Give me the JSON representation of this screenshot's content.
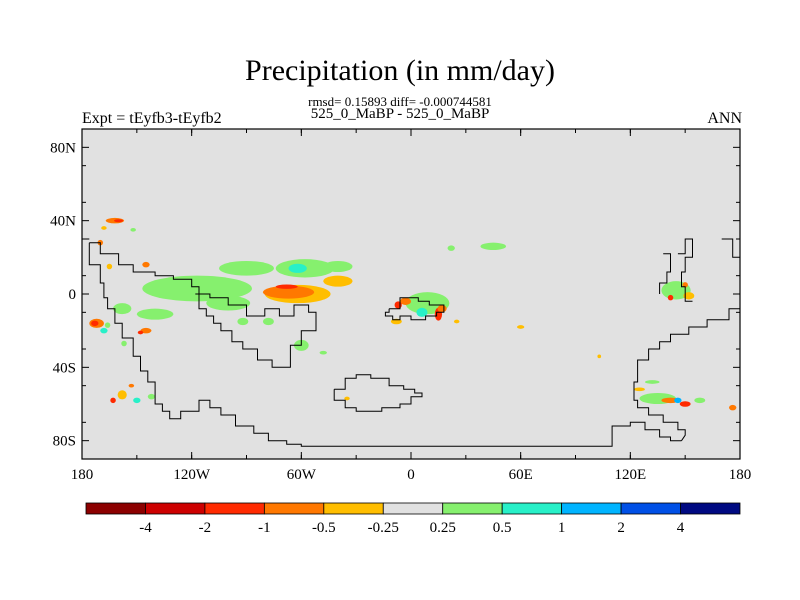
{
  "title": "Precipitation (in mm/day)",
  "stats": "rmsd= 0.15893 diff= -0.000744581",
  "case_label": "525_0_MaBP - 525_0_MaBP",
  "expt_label": "Expt = tEyfb3-tEyfb2",
  "season": "ANN",
  "chart_data": {
    "type": "heatmap",
    "title": "Precipitation (in mm/day)",
    "subtitle": "rmsd= 0.15893 diff= -0.000744581",
    "x_range": [
      -180,
      180
    ],
    "y_range": [
      -90,
      90
    ],
    "x_ticks": [
      {
        "value": -180,
        "label": "180"
      },
      {
        "value": -120,
        "label": "120W"
      },
      {
        "value": -60,
        "label": "60W"
      },
      {
        "value": 0,
        "label": "0"
      },
      {
        "value": 60,
        "label": "60E"
      },
      {
        "value": 120,
        "label": "120E"
      },
      {
        "value": 180,
        "label": "180"
      }
    ],
    "y_ticks": [
      {
        "value": 80,
        "label": "80N"
      },
      {
        "value": 40,
        "label": "40N"
      },
      {
        "value": 0,
        "label": "0"
      },
      {
        "value": -40,
        "label": "40S"
      },
      {
        "value": -80,
        "label": "80S"
      }
    ],
    "background_color": "#e1e1e1",
    "colorbar": {
      "colors": [
        "#8c0000",
        "#cd0000",
        "#ff2a00",
        "#ff7800",
        "#ffbe00",
        "#e1e1e1",
        "#86f06e",
        "#28f0c8",
        "#00b4ff",
        "#0050e6",
        "#000a82"
      ],
      "labels": [
        "-4",
        "-2",
        "-1",
        "-0.5",
        "-0.25",
        "0.25",
        "0.5",
        "1",
        "2",
        "4"
      ]
    },
    "anomalies": [
      {
        "lon": -162,
        "lat": 40,
        "rx": 5,
        "ry": 1.5,
        "color": "#ff7800"
      },
      {
        "lon": -160,
        "lat": 40,
        "rx": 2.5,
        "ry": 0.8,
        "color": "#ff2a00"
      },
      {
        "lon": -168,
        "lat": 36,
        "rx": 1.5,
        "ry": 1,
        "color": "#ffbe00"
      },
      {
        "lon": -152,
        "lat": 35,
        "rx": 1.5,
        "ry": 1,
        "color": "#86f06e"
      },
      {
        "lon": -170,
        "lat": 28,
        "rx": 1.5,
        "ry": 1.5,
        "color": "#ff7800"
      },
      {
        "lon": -145,
        "lat": 16,
        "rx": 2,
        "ry": 1.5,
        "color": "#ff7800"
      },
      {
        "lon": -165,
        "lat": 15,
        "rx": 1.5,
        "ry": 1.5,
        "color": "#ffbe00"
      },
      {
        "lon": -117,
        "lat": 3,
        "rx": 30,
        "ry": 7,
        "color": "#86f06e"
      },
      {
        "lon": -90,
        "lat": 14,
        "rx": 15,
        "ry": 4,
        "color": "#86f06e"
      },
      {
        "lon": -100,
        "lat": -5,
        "rx": 12,
        "ry": 4,
        "color": "#86f06e"
      },
      {
        "lon": -140,
        "lat": -11,
        "rx": 10,
        "ry": 3,
        "color": "#86f06e"
      },
      {
        "lon": -158,
        "lat": -8,
        "rx": 5,
        "ry": 3,
        "color": "#86f06e"
      },
      {
        "lon": -62,
        "lat": 0,
        "rx": 18,
        "ry": 5,
        "color": "#ffbe00"
      },
      {
        "lon": -67,
        "lat": 1,
        "rx": 14,
        "ry": 3.5,
        "color": "#ff7800"
      },
      {
        "lon": -68,
        "lat": 4,
        "rx": 6,
        "ry": 1.2,
        "color": "#ff2a00"
      },
      {
        "lon": -40,
        "lat": 7,
        "rx": 8,
        "ry": 3,
        "color": "#ffbe00"
      },
      {
        "lon": -58,
        "lat": 14,
        "rx": 16,
        "ry": 5,
        "color": "#86f06e"
      },
      {
        "lon": -40,
        "lat": 15,
        "rx": 8,
        "ry": 3,
        "color": "#86f06e"
      },
      {
        "lon": -62,
        "lat": 14,
        "rx": 5,
        "ry": 2.5,
        "color": "#28f0c8"
      },
      {
        "lon": -60,
        "lat": -28,
        "rx": 4,
        "ry": 3,
        "color": "#86f06e"
      },
      {
        "lon": -78,
        "lat": -15,
        "rx": 3,
        "ry": 2,
        "color": "#86f06e"
      },
      {
        "lon": -92,
        "lat": -15,
        "rx": 3,
        "ry": 2,
        "color": "#86f06e"
      },
      {
        "lon": -48,
        "lat": -32,
        "rx": 2,
        "ry": 1,
        "color": "#86f06e"
      },
      {
        "lon": 9,
        "lat": -5,
        "rx": 12,
        "ry": 6,
        "color": "#86f06e"
      },
      {
        "lon": -3,
        "lat": -4,
        "rx": 3,
        "ry": 2,
        "color": "#ff7800"
      },
      {
        "lon": -7,
        "lat": -6,
        "rx": 2,
        "ry": 2,
        "color": "#ff2a00"
      },
      {
        "lon": 6,
        "lat": -10,
        "rx": 3,
        "ry": 2.5,
        "color": "#28f0c8"
      },
      {
        "lon": 15,
        "lat": -11,
        "rx": 2,
        "ry": 3.5,
        "color": "#ff2a00"
      },
      {
        "lon": 17,
        "lat": -8,
        "rx": 2.5,
        "ry": 2,
        "color": "#ff7800"
      },
      {
        "lon": -8,
        "lat": -15,
        "rx": 3,
        "ry": 1.5,
        "color": "#ffbe00"
      },
      {
        "lon": 25,
        "lat": -15,
        "rx": 1.5,
        "ry": 1,
        "color": "#ffbe00"
      },
      {
        "lon": 22,
        "lat": 25,
        "rx": 2,
        "ry": 1.5,
        "color": "#86f06e"
      },
      {
        "lon": 45,
        "lat": 26,
        "rx": 7,
        "ry": 2,
        "color": "#86f06e"
      },
      {
        "lon": 60,
        "lat": -18,
        "rx": 2,
        "ry": 1,
        "color": "#ffbe00"
      },
      {
        "lon": 103,
        "lat": -34,
        "rx": 1,
        "ry": 1,
        "color": "#ffbe00"
      },
      {
        "lon": 145,
        "lat": 2,
        "rx": 8,
        "ry": 5,
        "color": "#86f06e"
      },
      {
        "lon": 152,
        "lat": -1,
        "rx": 3,
        "ry": 2,
        "color": "#ffbe00"
      },
      {
        "lon": 142,
        "lat": -2,
        "rx": 1.5,
        "ry": 1.5,
        "color": "#ff2a00"
      },
      {
        "lon": 150,
        "lat": 5,
        "rx": 1.5,
        "ry": 1.5,
        "color": "#ff7800"
      },
      {
        "lon": -172,
        "lat": -16,
        "rx": 4,
        "ry": 2.5,
        "color": "#ff7800"
      },
      {
        "lon": -173,
        "lat": -16,
        "rx": 2,
        "ry": 1.5,
        "color": "#ff2a00"
      },
      {
        "lon": -168,
        "lat": -20,
        "rx": 2,
        "ry": 1.5,
        "color": "#28f0c8"
      },
      {
        "lon": -166,
        "lat": -17,
        "rx": 1.5,
        "ry": 1.5,
        "color": "#86f06e"
      },
      {
        "lon": -145,
        "lat": -20,
        "rx": 3,
        "ry": 1.5,
        "color": "#ff7800"
      },
      {
        "lon": -148,
        "lat": -21,
        "rx": 1.5,
        "ry": 1,
        "color": "#ff2a00"
      },
      {
        "lon": -157,
        "lat": -27,
        "rx": 1.5,
        "ry": 1.5,
        "color": "#86f06e"
      },
      {
        "lon": -158,
        "lat": -55,
        "rx": 2.5,
        "ry": 2.5,
        "color": "#ffbe00"
      },
      {
        "lon": -163,
        "lat": -58,
        "rx": 1.5,
        "ry": 1.5,
        "color": "#ff2a00"
      },
      {
        "lon": -150,
        "lat": -58,
        "rx": 2,
        "ry": 1.5,
        "color": "#28f0c8"
      },
      {
        "lon": -142,
        "lat": -56,
        "rx": 2,
        "ry": 1.5,
        "color": "#86f06e"
      },
      {
        "lon": -153,
        "lat": -50,
        "rx": 1.5,
        "ry": 1,
        "color": "#ff7800"
      },
      {
        "lon": 135,
        "lat": -57,
        "rx": 10,
        "ry": 3,
        "color": "#86f06e"
      },
      {
        "lon": 142,
        "lat": -58,
        "rx": 5,
        "ry": 1.5,
        "color": "#ff7800"
      },
      {
        "lon": 150,
        "lat": -60,
        "rx": 3,
        "ry": 1.5,
        "color": "#ff2a00"
      },
      {
        "lon": 146,
        "lat": -58,
        "rx": 2,
        "ry": 1.5,
        "color": "#00b4ff"
      },
      {
        "lon": 158,
        "lat": -58,
        "rx": 3,
        "ry": 1.5,
        "color": "#86f06e"
      },
      {
        "lon": 125,
        "lat": -52,
        "rx": 3,
        "ry": 1,
        "color": "#ffbe00"
      },
      {
        "lon": 132,
        "lat": -48,
        "rx": 4,
        "ry": 1,
        "color": "#86f06e"
      },
      {
        "lon": 176,
        "lat": -62,
        "rx": 2,
        "ry": 1.5,
        "color": "#ff7800"
      },
      {
        "lon": -35,
        "lat": -57,
        "rx": 1.5,
        "ry": 1,
        "color": "#ffbe00"
      }
    ],
    "coastlines": [
      [
        [
          -176,
          28
        ],
        [
          -170,
          28
        ],
        [
          -170,
          22
        ],
        [
          -160,
          22
        ],
        [
          -160,
          16
        ],
        [
          -152,
          16
        ],
        [
          -152,
          12
        ],
        [
          -140,
          12
        ],
        [
          -140,
          10
        ],
        [
          -130,
          10
        ],
        [
          -130,
          8
        ],
        [
          -120,
          8
        ],
        [
          -120,
          4
        ],
        [
          -116,
          4
        ],
        [
          -116,
          -8
        ],
        [
          -112,
          -8
        ],
        [
          -112,
          -12
        ],
        [
          -108,
          -12
        ],
        [
          -108,
          -16
        ],
        [
          -104,
          -16
        ],
        [
          -104,
          -20
        ],
        [
          -98,
          -20
        ],
        [
          -98,
          -26
        ],
        [
          -92,
          -26
        ],
        [
          -92,
          -30
        ],
        [
          -84,
          -30
        ],
        [
          -84,
          -36
        ],
        [
          -76,
          -36
        ],
        [
          -76,
          -40
        ],
        [
          -66,
          -40
        ],
        [
          -66,
          -28
        ],
        [
          -60,
          -28
        ],
        [
          -60,
          -20
        ],
        [
          -52,
          -20
        ],
        [
          -52,
          -10
        ],
        [
          -56,
          -10
        ],
        [
          -56,
          -6
        ],
        [
          -64,
          -6
        ],
        [
          -64,
          -12
        ],
        [
          -72,
          -12
        ],
        [
          -72,
          -8
        ],
        [
          -80,
          -8
        ],
        [
          -80,
          -12
        ],
        [
          -90,
          -12
        ],
        [
          -90,
          -6
        ],
        [
          -100,
          -6
        ],
        [
          -100,
          -2
        ],
        [
          -110,
          -2
        ],
        [
          -110,
          0
        ],
        [
          -118,
          0
        ]
      ],
      [
        [
          -176,
          28
        ],
        [
          -176,
          16
        ],
        [
          -170,
          16
        ],
        [
          -170,
          6
        ],
        [
          -168,
          6
        ],
        [
          -168,
          -2
        ],
        [
          -166,
          -2
        ],
        [
          -166,
          -8
        ],
        [
          -162,
          -8
        ],
        [
          -162,
          -16
        ],
        [
          -158,
          -16
        ],
        [
          -158,
          -24
        ],
        [
          -152,
          -24
        ],
        [
          -152,
          -34
        ],
        [
          -148,
          -34
        ],
        [
          -148,
          -42
        ],
        [
          -144,
          -42
        ],
        [
          -144,
          -48
        ],
        [
          -140,
          -48
        ],
        [
          -140,
          -60
        ],
        [
          -136,
          -60
        ],
        [
          -136,
          -64
        ],
        [
          -132,
          -64
        ],
        [
          -132,
          -68
        ],
        [
          -126,
          -68
        ],
        [
          -126,
          -64
        ],
        [
          -116,
          -64
        ],
        [
          -116,
          -58
        ],
        [
          -110,
          -58
        ],
        [
          -110,
          -62
        ],
        [
          -104,
          -62
        ],
        [
          -104,
          -66
        ],
        [
          -96,
          -66
        ],
        [
          -96,
          -72
        ],
        [
          -86,
          -72
        ],
        [
          -86,
          -76
        ],
        [
          -78,
          -76
        ],
        [
          -78,
          -80
        ],
        [
          -68,
          -80
        ],
        [
          -68,
          -82
        ],
        [
          -60,
          -82
        ],
        [
          -60,
          -83
        ],
        [
          -20,
          -83
        ],
        [
          20,
          -83
        ],
        [
          62,
          -83
        ],
        [
          110,
          -83
        ],
        [
          110,
          -72
        ],
        [
          120,
          -72
        ],
        [
          120,
          -70
        ],
        [
          128,
          -70
        ],
        [
          128,
          -74
        ],
        [
          136,
          -74
        ],
        [
          136,
          -78
        ],
        [
          142,
          -78
        ],
        [
          142,
          -80
        ],
        [
          148,
          -80
        ]
      ],
      [
        [
          -12,
          -8
        ],
        [
          -6,
          -8
        ],
        [
          -6,
          -2
        ],
        [
          4,
          -2
        ],
        [
          4,
          -4
        ],
        [
          10,
          -4
        ],
        [
          10,
          -6
        ],
        [
          18,
          -6
        ],
        [
          18,
          -10
        ],
        [
          14,
          -10
        ],
        [
          14,
          -12
        ],
        [
          8,
          -12
        ],
        [
          8,
          -14
        ],
        [
          0,
          -14
        ],
        [
          0,
          -12
        ],
        [
          -6,
          -12
        ],
        [
          -6,
          -14
        ],
        [
          -10,
          -14
        ],
        [
          -10,
          -12
        ],
        [
          -14,
          -12
        ],
        [
          -14,
          -10
        ],
        [
          -12,
          -10
        ],
        [
          -12,
          -8
        ]
      ],
      [
        [
          -42,
          -52
        ],
        [
          -36,
          -52
        ],
        [
          -36,
          -46
        ],
        [
          -30,
          -46
        ],
        [
          -30,
          -44
        ],
        [
          -22,
          -44
        ],
        [
          -22,
          -46
        ],
        [
          -12,
          -46
        ],
        [
          -12,
          -50
        ],
        [
          -4,
          -50
        ],
        [
          -4,
          -52
        ],
        [
          2,
          -52
        ],
        [
          2,
          -54
        ],
        [
          6,
          -54
        ],
        [
          6,
          -56
        ],
        [
          0,
          -56
        ],
        [
          0,
          -60
        ],
        [
          -6,
          -60
        ],
        [
          -6,
          -62
        ],
        [
          -16,
          -62
        ],
        [
          -16,
          -64
        ],
        [
          -30,
          -64
        ],
        [
          -30,
          -62
        ],
        [
          -36,
          -62
        ],
        [
          -36,
          -58
        ],
        [
          -42,
          -58
        ],
        [
          -42,
          -52
        ]
      ],
      [
        [
          180,
          -8
        ],
        [
          174,
          -8
        ],
        [
          174,
          -14
        ],
        [
          162,
          -14
        ],
        [
          162,
          -18
        ],
        [
          152,
          -18
        ],
        [
          152,
          -22
        ],
        [
          142,
          -22
        ],
        [
          142,
          -26
        ],
        [
          136,
          -26
        ],
        [
          136,
          -30
        ],
        [
          130,
          -30
        ],
        [
          130,
          -36
        ],
        [
          124,
          -36
        ],
        [
          124,
          -48
        ],
        [
          122,
          -48
        ],
        [
          122,
          -58
        ],
        [
          124,
          -58
        ],
        [
          124,
          -62
        ],
        [
          130,
          -62
        ],
        [
          130,
          -66
        ],
        [
          138,
          -66
        ],
        [
          138,
          -70
        ],
        [
          146,
          -70
        ],
        [
          146,
          -74
        ],
        [
          150,
          -74
        ],
        [
          150,
          -77
        ],
        [
          148,
          -80
        ]
      ],
      [
        [
          170,
          30
        ],
        [
          176,
          30
        ],
        [
          176,
          20
        ],
        [
          180,
          20
        ]
      ],
      [
        [
          -180,
          30
        ],
        [
          -176,
          30
        ]
      ],
      [
        [
          146,
          22
        ],
        [
          150,
          22
        ],
        [
          150,
          30
        ],
        [
          154,
          30
        ],
        [
          154,
          20
        ],
        [
          150,
          20
        ],
        [
          150,
          12
        ],
        [
          148,
          12
        ],
        [
          148,
          4
        ],
        [
          150,
          4
        ],
        [
          150,
          -4
        ],
        [
          154,
          -4
        ]
      ],
      [
        [
          138,
          22
        ],
        [
          142,
          22
        ],
        [
          142,
          12
        ],
        [
          140,
          12
        ],
        [
          140,
          6
        ],
        [
          136,
          6
        ],
        [
          136,
          0
        ]
      ]
    ]
  }
}
